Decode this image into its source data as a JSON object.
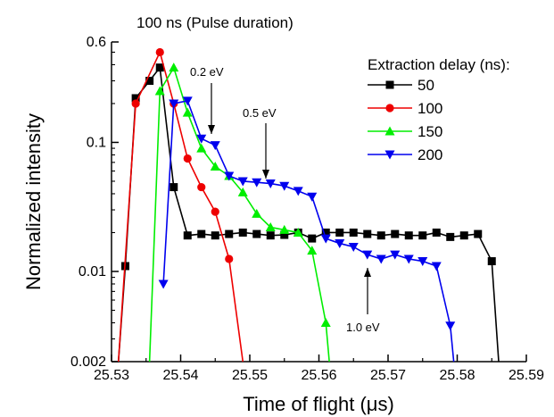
{
  "chart_data": {
    "type": "line",
    "title": "100 ns (Pulse duration)",
    "xlabel": "Time of flight (μs)",
    "ylabel": "Normalized intensity",
    "xlim": [
      25.53,
      25.59
    ],
    "ylim": [
      0.002,
      0.6
    ],
    "yscale": "log",
    "x_ticks": [
      "25.53",
      "25.54",
      "25.55",
      "25.56",
      "25.57",
      "25.58",
      "25.59"
    ],
    "y_ticks": [
      "0.002",
      "0.01",
      "0.1",
      "0.6"
    ],
    "y_tick_values": [
      0.002,
      0.01,
      0.1,
      0.6
    ],
    "grid": false,
    "legend_title": "Extraction delay (ns):",
    "legend_position": "top-right",
    "series": [
      {
        "name": "50",
        "color": "#000000",
        "marker": "square",
        "x": [
          25.531,
          25.532,
          25.5335,
          25.5355,
          25.537,
          25.539,
          25.541,
          25.543,
          25.545,
          25.547,
          25.549,
          25.551,
          25.553,
          25.555,
          25.557,
          25.559,
          25.561,
          25.563,
          25.565,
          25.567,
          25.569,
          25.571,
          25.573,
          25.575,
          25.577,
          25.579,
          25.581,
          25.583,
          25.585,
          25.586
        ],
        "y": [
          0.002,
          0.011,
          0.22,
          0.3,
          0.38,
          0.045,
          0.019,
          0.0195,
          0.019,
          0.0195,
          0.02,
          0.0195,
          0.019,
          0.0192,
          0.02,
          0.018,
          0.02,
          0.02,
          0.02,
          0.0195,
          0.019,
          0.0195,
          0.019,
          0.019,
          0.02,
          0.0185,
          0.019,
          0.0195,
          0.012,
          0.002
        ]
      },
      {
        "name": "100",
        "color": "#ee0000",
        "marker": "circle",
        "x": [
          25.531,
          25.5335,
          25.537,
          25.539,
          25.541,
          25.543,
          25.545,
          25.547,
          25.549
        ],
        "y": [
          0.002,
          0.2,
          0.5,
          0.2,
          0.075,
          0.045,
          0.029,
          0.0125,
          0.002
        ]
      },
      {
        "name": "150",
        "color": "#00ee00",
        "marker": "triangle-up",
        "x": [
          25.5355,
          25.537,
          25.539,
          25.541,
          25.543,
          25.545,
          25.547,
          25.549,
          25.551,
          25.553,
          25.555,
          25.557,
          25.559,
          25.561,
          25.5615
        ],
        "y": [
          0.002,
          0.25,
          0.38,
          0.17,
          0.09,
          0.065,
          0.055,
          0.041,
          0.028,
          0.022,
          0.021,
          0.02,
          0.0145,
          0.004,
          0.002
        ]
      },
      {
        "name": "200",
        "color": "#0000ee",
        "marker": "triangle-down",
        "x": [
          25.5375,
          25.539,
          25.541,
          25.543,
          25.545,
          25.547,
          25.549,
          25.551,
          25.553,
          25.555,
          25.557,
          25.559,
          25.561,
          25.563,
          25.565,
          25.567,
          25.569,
          25.571,
          25.573,
          25.575,
          25.577,
          25.579,
          25.5795
        ],
        "y": [
          0.008,
          0.2,
          0.21,
          0.107,
          0.095,
          0.055,
          0.05,
          0.049,
          0.048,
          0.046,
          0.042,
          0.038,
          0.018,
          0.0165,
          0.0155,
          0.0135,
          0.0125,
          0.0135,
          0.0125,
          0.012,
          0.011,
          0.0038,
          0.002
        ]
      }
    ],
    "annotations": [
      {
        "text": "0.2 eV",
        "x": 25.545,
        "y": 0.094
      },
      {
        "text": "0.5 eV",
        "x": 25.5525,
        "y": 0.05
      },
      {
        "text": "1.0 eV",
        "x": 25.568,
        "y": 0.0125
      }
    ]
  }
}
